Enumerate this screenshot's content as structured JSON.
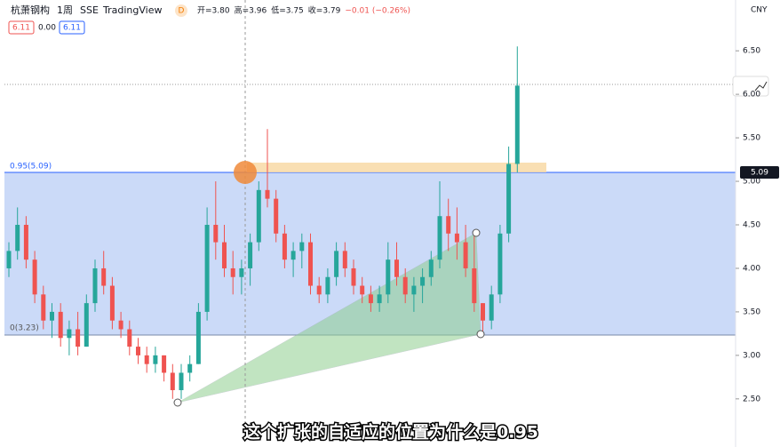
{
  "header": {
    "symbol": "杭萧钢构",
    "interval": "1周",
    "exchange": "SSE",
    "source": "TradingView",
    "badge": "D",
    "readout": [
      "开=3.80",
      "高=3.96",
      "低=3.75",
      "收=3.79",
      "−0.01 (−0.26%)"
    ],
    "boxes": [
      "6.11",
      "0.00",
      "6.11"
    ]
  },
  "currency": "CNY",
  "fib_labels": [
    "0.95(5.09)",
    "0(3.23)"
  ],
  "price_label": "5.09",
  "subtitle": "这个扩张的自适应的位置为什么是0.95",
  "chart_data": {
    "type": "candlestick",
    "ohlc": [
      [
        4.0,
        4.3,
        3.9,
        4.2
      ],
      [
        4.2,
        4.7,
        4.1,
        4.5
      ],
      [
        4.5,
        4.6,
        4.0,
        4.1
      ],
      [
        4.1,
        4.2,
        3.6,
        3.7
      ],
      [
        3.7,
        3.8,
        3.3,
        3.4
      ],
      [
        3.4,
        3.6,
        3.2,
        3.5
      ],
      [
        3.5,
        3.6,
        3.1,
        3.2
      ],
      [
        3.2,
        3.4,
        3.0,
        3.3
      ],
      [
        3.3,
        3.5,
        3.0,
        3.1
      ],
      [
        3.1,
        3.7,
        3.1,
        3.6
      ],
      [
        3.6,
        4.1,
        3.5,
        4.0
      ],
      [
        4.0,
        4.2,
        3.7,
        3.8
      ],
      [
        3.8,
        3.9,
        3.3,
        3.4
      ],
      [
        3.4,
        3.5,
        3.2,
        3.3
      ],
      [
        3.3,
        3.4,
        3.0,
        3.1
      ],
      [
        3.1,
        3.2,
        2.9,
        3.0
      ],
      [
        3.0,
        3.1,
        2.8,
        2.9
      ],
      [
        2.9,
        3.1,
        2.8,
        3.0
      ],
      [
        3.0,
        3.0,
        2.7,
        2.8
      ],
      [
        2.8,
        2.9,
        2.5,
        2.6
      ],
      [
        2.6,
        2.9,
        2.5,
        2.8
      ],
      [
        2.8,
        3.0,
        2.7,
        2.9
      ],
      [
        2.9,
        3.6,
        2.9,
        3.5
      ],
      [
        3.5,
        4.7,
        3.4,
        4.5
      ],
      [
        4.5,
        5.0,
        4.1,
        4.3
      ],
      [
        4.3,
        4.5,
        3.9,
        4.0
      ],
      [
        4.0,
        4.2,
        3.7,
        3.9
      ],
      [
        3.9,
        4.1,
        3.7,
        4.0
      ],
      [
        4.0,
        4.4,
        3.8,
        4.3
      ],
      [
        4.3,
        5.0,
        4.2,
        4.9
      ],
      [
        4.9,
        5.6,
        4.7,
        4.8
      ],
      [
        4.8,
        4.9,
        4.3,
        4.4
      ],
      [
        4.4,
        4.5,
        4.0,
        4.1
      ],
      [
        4.1,
        4.3,
        3.9,
        4.2
      ],
      [
        4.2,
        4.4,
        4.0,
        4.3
      ],
      [
        4.3,
        4.4,
        3.7,
        3.8
      ],
      [
        3.8,
        3.9,
        3.6,
        3.7
      ],
      [
        3.7,
        4.0,
        3.6,
        3.9
      ],
      [
        3.9,
        4.3,
        3.8,
        4.2
      ],
      [
        4.2,
        4.3,
        3.9,
        4.0
      ],
      [
        4.0,
        4.1,
        3.7,
        3.8
      ],
      [
        3.8,
        3.9,
        3.6,
        3.7
      ],
      [
        3.7,
        3.8,
        3.5,
        3.6
      ],
      [
        3.6,
        3.8,
        3.5,
        3.7
      ],
      [
        3.7,
        4.3,
        3.6,
        4.1
      ],
      [
        4.1,
        4.3,
        3.8,
        3.9
      ],
      [
        3.9,
        4.0,
        3.6,
        3.7
      ],
      [
        3.7,
        3.9,
        3.5,
        3.8
      ],
      [
        3.8,
        4.0,
        3.6,
        3.9
      ],
      [
        3.9,
        4.2,
        3.8,
        4.1
      ],
      [
        4.1,
        5.0,
        4.0,
        4.6
      ],
      [
        4.6,
        4.8,
        4.2,
        4.4
      ],
      [
        4.4,
        4.7,
        4.1,
        4.3
      ],
      [
        4.3,
        4.5,
        3.9,
        4.0
      ],
      [
        4.0,
        4.4,
        3.5,
        3.6
      ],
      [
        3.6,
        3.6,
        3.25,
        3.4
      ],
      [
        3.4,
        3.8,
        3.3,
        3.7
      ],
      [
        3.7,
        4.5,
        3.6,
        4.4
      ],
      [
        4.4,
        5.4,
        4.3,
        5.2
      ],
      [
        5.2,
        6.55,
        5.1,
        6.1
      ]
    ],
    "up_color": "#26a69a",
    "down_color": "#ef5350",
    "ylim": [
      2.1,
      6.9
    ],
    "yticks": [
      {
        "value": 2.5,
        "label": "2.50"
      },
      {
        "value": 3,
        "label": "3.00"
      },
      {
        "value": 3.5,
        "label": "3.50"
      },
      {
        "value": 4,
        "label": "4.00"
      },
      {
        "value": 4.5,
        "label": "4.50"
      },
      {
        "value": 5,
        "label": "5.00"
      },
      {
        "value": 5.5,
        "label": "5.50"
      },
      {
        "value": 6,
        "label": "6.00"
      },
      {
        "value": 6.5,
        "label": "6.50"
      }
    ]
  }
}
